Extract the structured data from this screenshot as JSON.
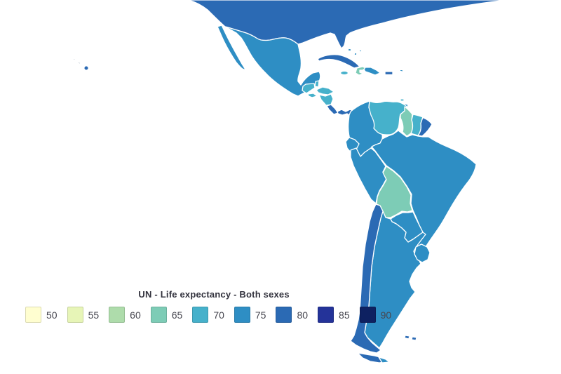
{
  "legend": {
    "title": "UN - Life expectancy - Both sexes",
    "stops": [
      {
        "label": "50",
        "color": "#fffed0"
      },
      {
        "label": "55",
        "color": "#e7f5b7"
      },
      {
        "label": "60",
        "color": "#aedcab"
      },
      {
        "label": "65",
        "color": "#7dccb6"
      },
      {
        "label": "70",
        "color": "#46b1cb"
      },
      {
        "label": "75",
        "color": "#2e8ec4"
      },
      {
        "label": "80",
        "color": "#2b6ab4"
      },
      {
        "label": "85",
        "color": "#243399"
      },
      {
        "label": "90",
        "color": "#0e2161"
      }
    ]
  },
  "map": {
    "border_color": "#ffffff",
    "no_data_color": "#c9d2da",
    "countries": [
      {
        "id": "usa",
        "bin": "80"
      },
      {
        "id": "hawaii",
        "bin": "80"
      },
      {
        "id": "pacific-islands",
        "color": "#c9d2da"
      },
      {
        "id": "mexico",
        "bin": "75"
      },
      {
        "id": "guatemala",
        "bin": "70"
      },
      {
        "id": "belize",
        "bin": "70"
      },
      {
        "id": "honduras",
        "bin": "70"
      },
      {
        "id": "el-salvador",
        "bin": "70"
      },
      {
        "id": "nicaragua",
        "bin": "70"
      },
      {
        "id": "costa-rica",
        "bin": "80"
      },
      {
        "id": "panama",
        "bin": "80"
      },
      {
        "id": "cuba",
        "bin": "80"
      },
      {
        "id": "bahamas",
        "bin": "75"
      },
      {
        "id": "jamaica",
        "bin": "70"
      },
      {
        "id": "haiti",
        "bin": "65"
      },
      {
        "id": "dominican-republic",
        "bin": "75"
      },
      {
        "id": "puerto-rico",
        "bin": "80"
      },
      {
        "id": "lesser-antilles",
        "bin": "75"
      },
      {
        "id": "margarita",
        "bin": "70"
      },
      {
        "id": "trinidad",
        "bin": "75"
      },
      {
        "id": "colombia",
        "bin": "75"
      },
      {
        "id": "venezuela",
        "bin": "70"
      },
      {
        "id": "guyana",
        "bin": "65"
      },
      {
        "id": "suriname",
        "bin": "70"
      },
      {
        "id": "french-guiana",
        "bin": "80"
      },
      {
        "id": "ecuador",
        "bin": "75"
      },
      {
        "id": "peru",
        "bin": "75"
      },
      {
        "id": "brazil",
        "bin": "75"
      },
      {
        "id": "bolivia",
        "bin": "65"
      },
      {
        "id": "paraguay",
        "bin": "75"
      },
      {
        "id": "argentina",
        "bin": "75"
      },
      {
        "id": "chile",
        "bin": "80"
      },
      {
        "id": "uruguay",
        "bin": "75"
      },
      {
        "id": "tdf-chile",
        "bin": "80"
      },
      {
        "id": "tdf-argentina",
        "bin": "75"
      },
      {
        "id": "falklands",
        "bin": "80"
      }
    ]
  },
  "chart_data": {
    "type": "heatmap",
    "subtype": "choropleth-map",
    "title": "UN - Life expectancy - Both sexes",
    "unit": "years",
    "legend_position": "bottom-left",
    "legend_bins": [
      50,
      55,
      60,
      65,
      70,
      75,
      80,
      85,
      90
    ],
    "legend_colors": [
      "#fffed0",
      "#e7f5b7",
      "#aedcab",
      "#7dccb6",
      "#46b1cb",
      "#2e8ec4",
      "#2b6ab4",
      "#243399",
      "#0e2161"
    ],
    "regions": [
      {
        "name": "United States",
        "bin": 80
      },
      {
        "name": "Mexico",
        "bin": 75
      },
      {
        "name": "Guatemala",
        "bin": 70
      },
      {
        "name": "Belize",
        "bin": 70
      },
      {
        "name": "Honduras",
        "bin": 70
      },
      {
        "name": "El Salvador",
        "bin": 70
      },
      {
        "name": "Nicaragua",
        "bin": 70
      },
      {
        "name": "Costa Rica",
        "bin": 80
      },
      {
        "name": "Panama",
        "bin": 80
      },
      {
        "name": "Cuba",
        "bin": 80
      },
      {
        "name": "Bahamas",
        "bin": 75
      },
      {
        "name": "Jamaica",
        "bin": 70
      },
      {
        "name": "Haiti",
        "bin": 65
      },
      {
        "name": "Dominican Republic",
        "bin": 75
      },
      {
        "name": "Puerto Rico",
        "bin": 80
      },
      {
        "name": "Trinidad and Tobago",
        "bin": 75
      },
      {
        "name": "Colombia",
        "bin": 75
      },
      {
        "name": "Venezuela",
        "bin": 70
      },
      {
        "name": "Guyana",
        "bin": 65
      },
      {
        "name": "Suriname",
        "bin": 70
      },
      {
        "name": "French Guiana",
        "bin": 80
      },
      {
        "name": "Ecuador",
        "bin": 75
      },
      {
        "name": "Peru",
        "bin": 75
      },
      {
        "name": "Brazil",
        "bin": 75
      },
      {
        "name": "Bolivia",
        "bin": 65
      },
      {
        "name": "Paraguay",
        "bin": 75
      },
      {
        "name": "Chile",
        "bin": 80
      },
      {
        "name": "Argentina",
        "bin": 75
      },
      {
        "name": "Uruguay",
        "bin": 75
      },
      {
        "name": "Falkland Islands",
        "bin": 80
      }
    ]
  }
}
